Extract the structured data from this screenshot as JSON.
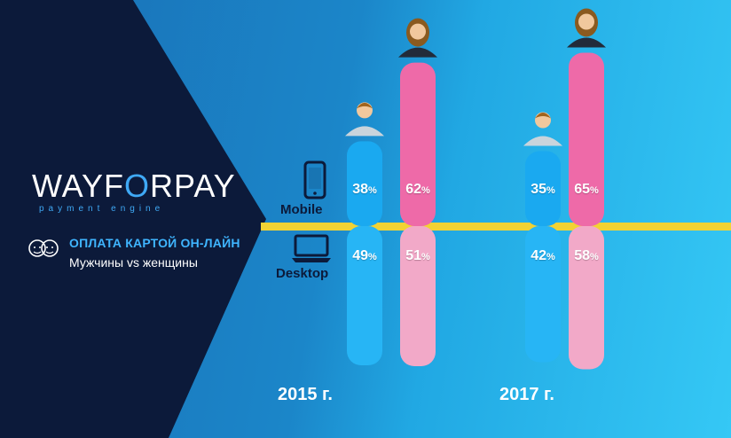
{
  "brand": {
    "logo_part1": "WAYF",
    "logo_accent": "O",
    "logo_part2": "RPAY",
    "tagline": "payment engine"
  },
  "heading": {
    "title": "ОПЛАТА КАРТОЙ ОН-ЛАЙН",
    "subtitle": "Мужчины vs женщины"
  },
  "colors": {
    "male": "#1aa9f0",
    "female": "#ee6aa8",
    "divider": "#f2d233",
    "panel": "#0c1a3a",
    "accent": "#3fa9f5"
  },
  "chart_data": {
    "type": "bar",
    "categories": [
      "2015 г.",
      "2017 г."
    ],
    "devices": [
      "Mobile",
      "Desktop"
    ],
    "series": [
      {
        "gender": "male",
        "icon": "male-user-icon",
        "Mobile": [
          38,
          35
        ],
        "Desktop": [
          49,
          42
        ]
      },
      {
        "gender": "female",
        "icon": "female-user-icon",
        "Mobile": [
          62,
          65
        ],
        "Desktop": [
          51,
          58
        ]
      }
    ],
    "unit": "%"
  }
}
